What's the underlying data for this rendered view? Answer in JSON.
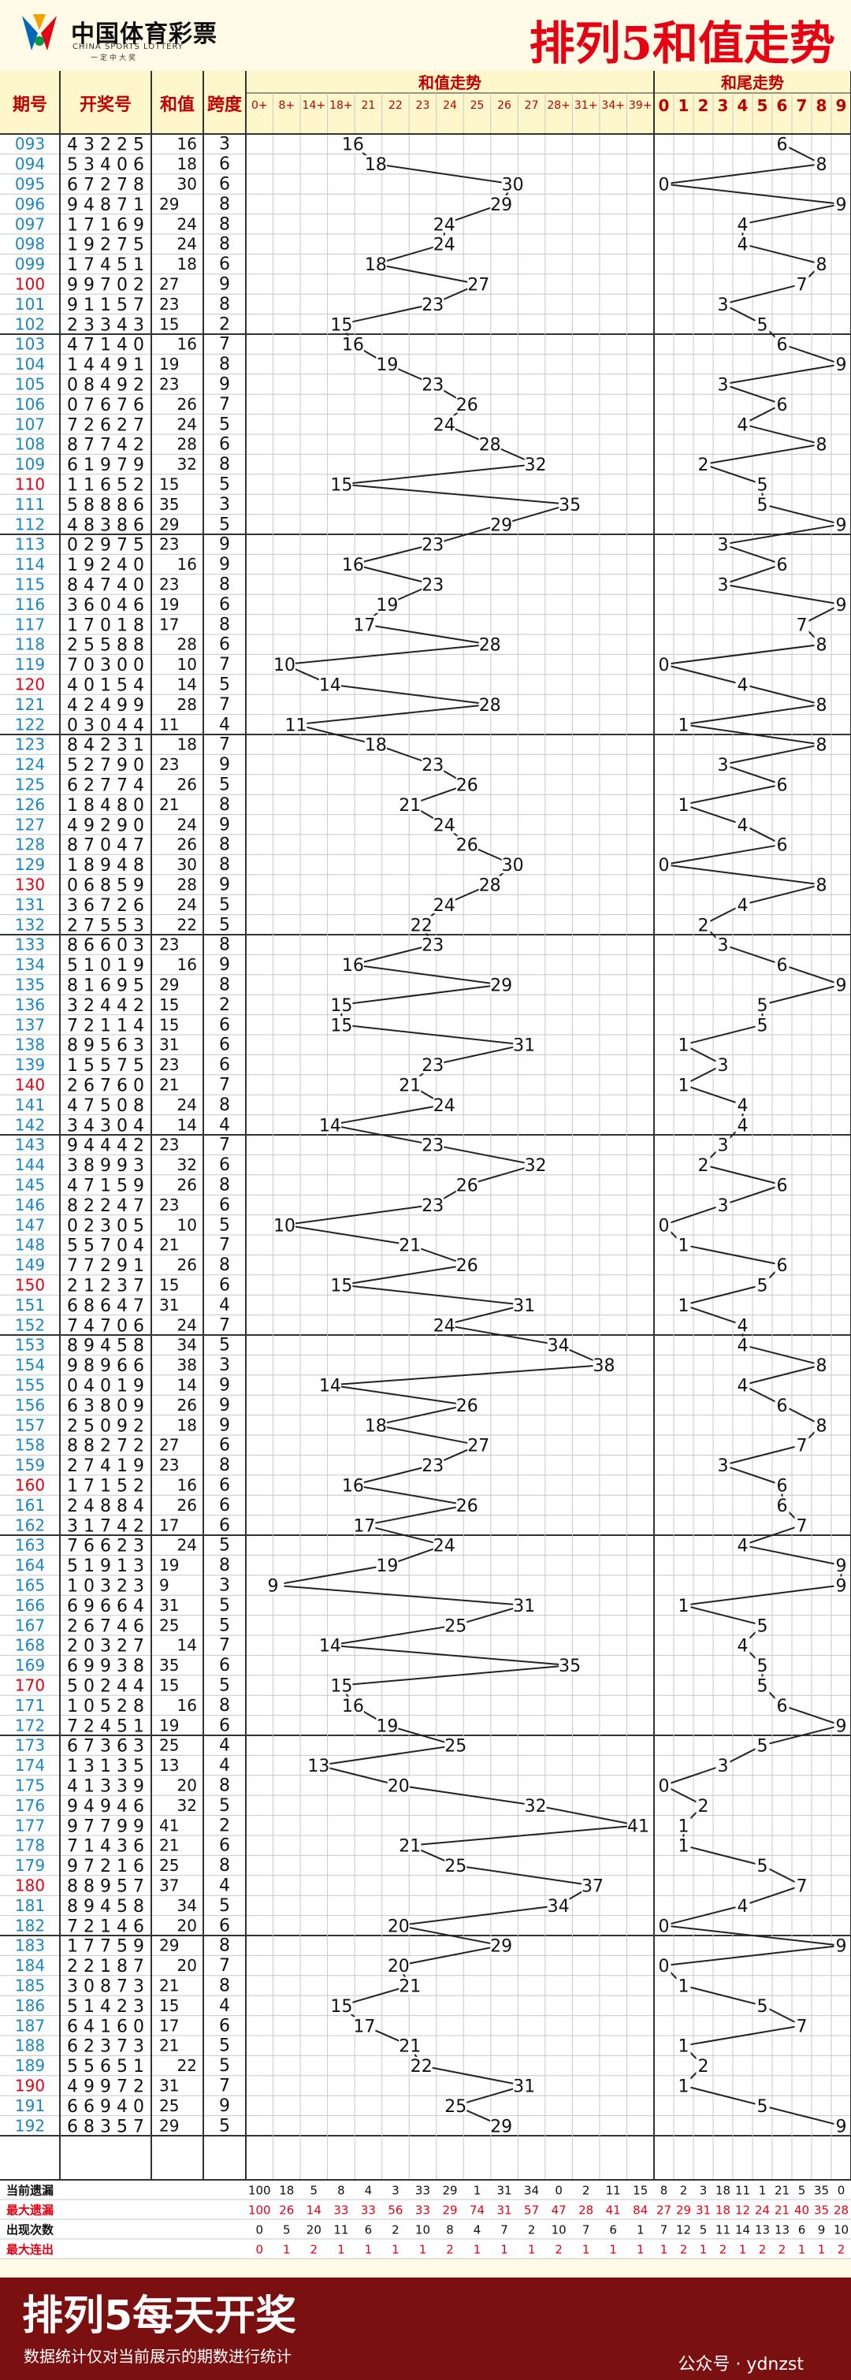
{
  "header": {
    "logo_text": "中国体育彩票",
    "logo_en": "CHINA SPORTS LOTTERY",
    "logo_sub": "一定中大奖",
    "title": "排列5和值走势"
  },
  "columns": {
    "issue": "期号",
    "number": "开奖号",
    "sum": "和值",
    "span": "跨度",
    "sum_trend": "和值走势",
    "tail_trend": "和尾走势"
  },
  "sum_bins": [
    "0+",
    "8+",
    "14+",
    "18+",
    "21",
    "22",
    "23",
    "24",
    "25",
    "26",
    "27",
    "28+",
    "31+",
    "34+",
    "39+"
  ],
  "tail_bins": [
    "0",
    "1",
    "2",
    "3",
    "4",
    "5",
    "6",
    "7",
    "8",
    "9"
  ],
  "chart_data": {
    "type": "line",
    "title": "排列5和值走势",
    "rows": [
      {
        "issue": "093",
        "number": "43225",
        "sum": 16,
        "span": 3
      },
      {
        "issue": "094",
        "number": "53406",
        "sum": 18,
        "span": 6
      },
      {
        "issue": "095",
        "number": "67278",
        "sum": 30,
        "span": 6
      },
      {
        "issue": "096",
        "number": "94871",
        "sum": 29,
        "span": 8
      },
      {
        "issue": "097",
        "number": "17169",
        "sum": 24,
        "span": 8
      },
      {
        "issue": "098",
        "number": "19275",
        "sum": 24,
        "span": 8
      },
      {
        "issue": "099",
        "number": "17451",
        "sum": 18,
        "span": 6
      },
      {
        "issue": "100",
        "number": "99702",
        "sum": 27,
        "span": 9
      },
      {
        "issue": "101",
        "number": "91157",
        "sum": 23,
        "span": 8
      },
      {
        "issue": "102",
        "number": "23343",
        "sum": 15,
        "span": 2
      },
      {
        "issue": "103",
        "number": "47140",
        "sum": 16,
        "span": 7
      },
      {
        "issue": "104",
        "number": "14491",
        "sum": 19,
        "span": 8
      },
      {
        "issue": "105",
        "number": "08492",
        "sum": 23,
        "span": 9
      },
      {
        "issue": "106",
        "number": "07676",
        "sum": 26,
        "span": 7
      },
      {
        "issue": "107",
        "number": "72627",
        "sum": 24,
        "span": 5
      },
      {
        "issue": "108",
        "number": "87742",
        "sum": 28,
        "span": 6
      },
      {
        "issue": "109",
        "number": "61979",
        "sum": 32,
        "span": 8
      },
      {
        "issue": "110",
        "number": "11652",
        "sum": 15,
        "span": 5
      },
      {
        "issue": "111",
        "number": "58886",
        "sum": 35,
        "span": 3
      },
      {
        "issue": "112",
        "number": "48386",
        "sum": 29,
        "span": 5
      },
      {
        "issue": "113",
        "number": "02975",
        "sum": 23,
        "span": 9
      },
      {
        "issue": "114",
        "number": "19240",
        "sum": 16,
        "span": 9
      },
      {
        "issue": "115",
        "number": "84740",
        "sum": 23,
        "span": 8
      },
      {
        "issue": "116",
        "number": "36046",
        "sum": 19,
        "span": 6
      },
      {
        "issue": "117",
        "number": "17018",
        "sum": 17,
        "span": 8
      },
      {
        "issue": "118",
        "number": "25588",
        "sum": 28,
        "span": 6
      },
      {
        "issue": "119",
        "number": "70300",
        "sum": 10,
        "span": 7
      },
      {
        "issue": "120",
        "number": "40154",
        "sum": 14,
        "span": 5
      },
      {
        "issue": "121",
        "number": "42499",
        "sum": 28,
        "span": 7
      },
      {
        "issue": "122",
        "number": "03044",
        "sum": 11,
        "span": 4
      },
      {
        "issue": "123",
        "number": "84231",
        "sum": 18,
        "span": 7
      },
      {
        "issue": "124",
        "number": "52790",
        "sum": 23,
        "span": 9
      },
      {
        "issue": "125",
        "number": "62774",
        "sum": 26,
        "span": 5
      },
      {
        "issue": "126",
        "number": "18480",
        "sum": 21,
        "span": 8
      },
      {
        "issue": "127",
        "number": "49290",
        "sum": 24,
        "span": 9
      },
      {
        "issue": "128",
        "number": "87047",
        "sum": 26,
        "span": 8
      },
      {
        "issue": "129",
        "number": "18948",
        "sum": 30,
        "span": 8
      },
      {
        "issue": "130",
        "number": "06859",
        "sum": 28,
        "span": 9
      },
      {
        "issue": "131",
        "number": "36726",
        "sum": 24,
        "span": 5
      },
      {
        "issue": "132",
        "number": "27553",
        "sum": 22,
        "span": 5
      },
      {
        "issue": "133",
        "number": "86603",
        "sum": 23,
        "span": 8
      },
      {
        "issue": "134",
        "number": "51019",
        "sum": 16,
        "span": 9
      },
      {
        "issue": "135",
        "number": "81695",
        "sum": 29,
        "span": 8
      },
      {
        "issue": "136",
        "number": "32442",
        "sum": 15,
        "span": 2
      },
      {
        "issue": "137",
        "number": "72114",
        "sum": 15,
        "span": 6
      },
      {
        "issue": "138",
        "number": "89563",
        "sum": 31,
        "span": 6
      },
      {
        "issue": "139",
        "number": "15575",
        "sum": 23,
        "span": 6
      },
      {
        "issue": "140",
        "number": "26760",
        "sum": 21,
        "span": 7
      },
      {
        "issue": "141",
        "number": "47508",
        "sum": 24,
        "span": 8
      },
      {
        "issue": "142",
        "number": "34304",
        "sum": 14,
        "span": 4
      },
      {
        "issue": "143",
        "number": "94442",
        "sum": 23,
        "span": 7
      },
      {
        "issue": "144",
        "number": "38993",
        "sum": 32,
        "span": 6
      },
      {
        "issue": "145",
        "number": "47159",
        "sum": 26,
        "span": 8
      },
      {
        "issue": "146",
        "number": "82247",
        "sum": 23,
        "span": 6
      },
      {
        "issue": "147",
        "number": "02305",
        "sum": 10,
        "span": 5
      },
      {
        "issue": "148",
        "number": "55704",
        "sum": 21,
        "span": 7
      },
      {
        "issue": "149",
        "number": "77291",
        "sum": 26,
        "span": 8
      },
      {
        "issue": "150",
        "number": "21237",
        "sum": 15,
        "span": 6
      },
      {
        "issue": "151",
        "number": "68647",
        "sum": 31,
        "span": 4
      },
      {
        "issue": "152",
        "number": "74706",
        "sum": 24,
        "span": 7
      },
      {
        "issue": "153",
        "number": "89458",
        "sum": 34,
        "span": 5
      },
      {
        "issue": "154",
        "number": "98966",
        "sum": 38,
        "span": 3
      },
      {
        "issue": "155",
        "number": "04019",
        "sum": 14,
        "span": 9
      },
      {
        "issue": "156",
        "number": "63809",
        "sum": 26,
        "span": 9
      },
      {
        "issue": "157",
        "number": "25092",
        "sum": 18,
        "span": 9
      },
      {
        "issue": "158",
        "number": "88272",
        "sum": 27,
        "span": 6
      },
      {
        "issue": "159",
        "number": "27419",
        "sum": 23,
        "span": 8
      },
      {
        "issue": "160",
        "number": "17152",
        "sum": 16,
        "span": 6
      },
      {
        "issue": "161",
        "number": "24884",
        "sum": 26,
        "span": 6
      },
      {
        "issue": "162",
        "number": "31742",
        "sum": 17,
        "span": 6
      },
      {
        "issue": "163",
        "number": "76623",
        "sum": 24,
        "span": 5
      },
      {
        "issue": "164",
        "number": "51913",
        "sum": 19,
        "span": 8
      },
      {
        "issue": "165",
        "number": "10323",
        "sum": 9,
        "span": 3
      },
      {
        "issue": "166",
        "number": "69664",
        "sum": 31,
        "span": 5
      },
      {
        "issue": "167",
        "number": "26746",
        "sum": 25,
        "span": 5
      },
      {
        "issue": "168",
        "number": "20327",
        "sum": 14,
        "span": 7
      },
      {
        "issue": "169",
        "number": "69938",
        "sum": 35,
        "span": 6
      },
      {
        "issue": "170",
        "number": "50244",
        "sum": 15,
        "span": 5
      },
      {
        "issue": "171",
        "number": "10528",
        "sum": 16,
        "span": 8
      },
      {
        "issue": "172",
        "number": "72451",
        "sum": 19,
        "span": 6
      },
      {
        "issue": "173",
        "number": "67363",
        "sum": 25,
        "span": 4
      },
      {
        "issue": "174",
        "number": "13135",
        "sum": 13,
        "span": 4
      },
      {
        "issue": "175",
        "number": "41339",
        "sum": 20,
        "span": 8
      },
      {
        "issue": "176",
        "number": "94946",
        "sum": 32,
        "span": 5
      },
      {
        "issue": "177",
        "number": "97799",
        "sum": 41,
        "span": 2
      },
      {
        "issue": "178",
        "number": "71436",
        "sum": 21,
        "span": 6
      },
      {
        "issue": "179",
        "number": "97216",
        "sum": 25,
        "span": 8
      },
      {
        "issue": "180",
        "number": "88957",
        "sum": 37,
        "span": 4
      },
      {
        "issue": "181",
        "number": "89458",
        "sum": 34,
        "span": 5
      },
      {
        "issue": "182",
        "number": "72146",
        "sum": 20,
        "span": 6
      },
      {
        "issue": "183",
        "number": "17759",
        "sum": 29,
        "span": 8
      },
      {
        "issue": "184",
        "number": "22187",
        "sum": 20,
        "span": 7
      },
      {
        "issue": "185",
        "number": "30873",
        "sum": 21,
        "span": 8
      },
      {
        "issue": "186",
        "number": "51423",
        "sum": 15,
        "span": 4
      },
      {
        "issue": "187",
        "number": "64160",
        "sum": 17,
        "span": 6
      },
      {
        "issue": "188",
        "number": "62373",
        "sum": 21,
        "span": 5
      },
      {
        "issue": "189",
        "number": "55651",
        "sum": 22,
        "span": 5
      },
      {
        "issue": "190",
        "number": "49972",
        "sum": 31,
        "span": 7
      },
      {
        "issue": "191",
        "number": "66940",
        "sum": 25,
        "span": 9
      },
      {
        "issue": "192",
        "number": "68357",
        "sum": 29,
        "span": 5
      }
    ]
  },
  "stats": {
    "labels": [
      "当前遗漏",
      "最大遗漏",
      "出现次数",
      "最大连出"
    ],
    "sum_rows": [
      [
        100,
        18,
        5,
        8,
        4,
        3,
        33,
        29,
        1,
        31,
        34,
        0,
        2,
        11,
        15
      ],
      [
        100,
        26,
        14,
        33,
        33,
        56,
        33,
        29,
        74,
        31,
        57,
        47,
        28,
        41,
        84
      ],
      [
        0,
        5,
        20,
        11,
        6,
        2,
        10,
        8,
        4,
        7,
        2,
        10,
        7,
        6,
        1
      ],
      [
        0,
        1,
        2,
        1,
        1,
        1,
        1,
        2,
        1,
        1,
        1,
        2,
        1,
        1,
        1
      ]
    ],
    "tail_rows": [
      [
        8,
        2,
        3,
        18,
        11,
        1,
        21,
        5,
        35,
        0
      ],
      [
        27,
        29,
        31,
        18,
        12,
        24,
        21,
        40,
        35,
        28
      ],
      [
        7,
        12,
        5,
        11,
        14,
        13,
        13,
        6,
        9,
        10
      ],
      [
        1,
        2,
        1,
        2,
        1,
        2,
        2,
        1,
        1,
        2
      ]
    ]
  },
  "footer": {
    "title": "排列5每天开奖",
    "note": "数据统计仅对当前展示的期数进行统计",
    "watermark": "公众号 · ydnzst"
  }
}
